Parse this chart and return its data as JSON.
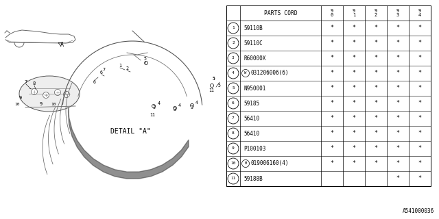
{
  "diagram_id": "A541000036",
  "background_color": "#ffffff",
  "rows": [
    {
      "num": "1",
      "part": "59110B",
      "cols": [
        "*",
        "*",
        "*",
        "*",
        "*"
      ],
      "special": ""
    },
    {
      "num": "2",
      "part": "59110C",
      "cols": [
        "*",
        "*",
        "*",
        "*",
        "*"
      ],
      "special": ""
    },
    {
      "num": "3",
      "part": "R60000X",
      "cols": [
        "*",
        "*",
        "*",
        "*",
        "*"
      ],
      "special": ""
    },
    {
      "num": "4",
      "part": "031206006(6)",
      "cols": [
        "*",
        "*",
        "*",
        "*",
        "*"
      ],
      "special": "W"
    },
    {
      "num": "5",
      "part": "N950001",
      "cols": [
        "*",
        "*",
        "*",
        "*",
        "*"
      ],
      "special": ""
    },
    {
      "num": "6",
      "part": "59185",
      "cols": [
        "*",
        "*",
        "*",
        "*",
        "*"
      ],
      "special": ""
    },
    {
      "num": "7",
      "part": "56410",
      "cols": [
        "*",
        "*",
        "*",
        "*",
        "*"
      ],
      "special": ""
    },
    {
      "num": "8",
      "part": "56410",
      "cols": [
        "*",
        "*",
        "*",
        "*",
        "*"
      ],
      "special": ""
    },
    {
      "num": "9",
      "part": "P100103",
      "cols": [
        "*",
        "*",
        "*",
        "*",
        "*"
      ],
      "special": ""
    },
    {
      "num": "10",
      "part": "019006160(4)",
      "cols": [
        "*",
        "*",
        "*",
        "*",
        "*"
      ],
      "special": "B"
    },
    {
      "num": "11",
      "part": "59188B",
      "cols": [
        "",
        "",
        "",
        "*",
        "*"
      ],
      "special": ""
    }
  ],
  "year_headers": [
    "9\n0",
    "9\n1",
    "9\n2",
    "9\n3",
    "9\n4"
  ],
  "detail_text": "DETAIL \"A\""
}
